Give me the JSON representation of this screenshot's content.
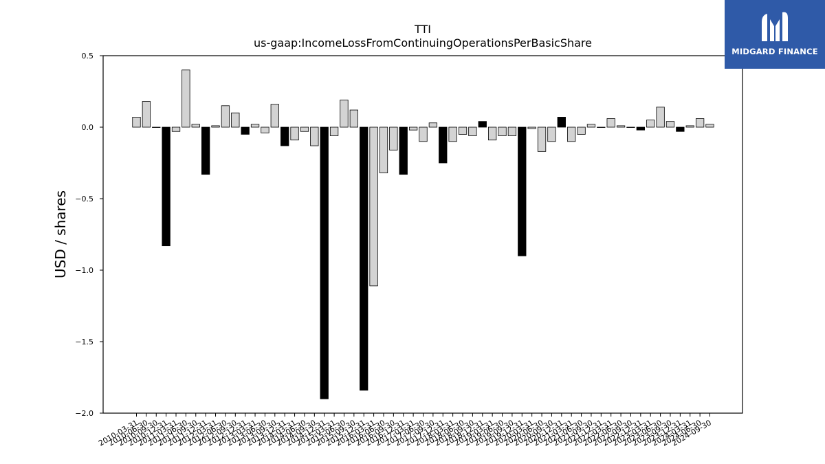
{
  "logo": {
    "text": "MIDGARD FINANCE",
    "icon": "midgard-logo-icon",
    "background": "#2f5aa8"
  },
  "chart_data": {
    "type": "bar",
    "title": "TTI",
    "subtitle": "us-gaap:IncomeLossFromContinuingOperationsPerBasicShare",
    "xlabel": "",
    "ylabel": "USD / shares",
    "ylim": [
      -2.0,
      0.5
    ],
    "yticks": [
      0.5,
      0.0,
      -0.5,
      -1.0,
      -1.5,
      -2.0
    ],
    "ytick_labels": [
      "0.5",
      "0.0",
      "−0.5",
      "−1.0",
      "−1.5",
      "−2.0"
    ],
    "grid": false,
    "colors": {
      "quarterly": "#d3d3d3",
      "annual": "#000000",
      "edge": "#000000"
    },
    "categories": [
      "2010-03-31",
      "2010-06-30",
      "2010-09-30",
      "2010-12-31",
      "2011-03-31",
      "2011-06-30",
      "2011-09-30",
      "2011-12-31",
      "2012-03-31",
      "2012-06-30",
      "2012-09-30",
      "2012-12-31",
      "2013-03-31",
      "2013-06-30",
      "2013-09-30",
      "2013-12-31",
      "2014-03-31",
      "2014-06-30",
      "2014-09-30",
      "2014-12-31",
      "2015-03-31",
      "2015-06-30",
      "2015-09-30",
      "2015-12-31",
      "2016-03-31",
      "2016-06-30",
      "2016-09-30",
      "2016-12-31",
      "2017-03-31",
      "2017-06-30",
      "2017-09-30",
      "2017-12-31",
      "2018-03-31",
      "2018-06-30",
      "2018-09-30",
      "2018-12-31",
      "2019-03-31",
      "2019-06-30",
      "2019-09-30",
      "2019-12-31",
      "2020-03-31",
      "2020-06-30",
      "2020-09-30",
      "2020-12-31",
      "2021-03-31",
      "2021-06-30",
      "2021-09-30",
      "2021-12-31",
      "2022-03-31",
      "2022-06-30",
      "2022-09-30",
      "2022-12-31",
      "2023-03-31",
      "2023-06-30",
      "2023-09-30",
      "2023-12-31",
      "2024-03-31",
      "2024-06-30",
      "2024-09-30"
    ],
    "values": [
      0.07,
      0.18,
      0.0,
      -0.83,
      -0.03,
      0.4,
      0.02,
      -0.33,
      0.01,
      0.15,
      0.1,
      -0.05,
      0.02,
      -0.04,
      0.16,
      -0.13,
      -0.09,
      -0.03,
      -0.13,
      -1.9,
      -0.06,
      0.19,
      0.12,
      -1.84,
      -1.11,
      -0.32,
      -0.16,
      -0.33,
      -0.02,
      -0.1,
      0.03,
      -0.25,
      -0.1,
      -0.05,
      -0.06,
      0.04,
      -0.09,
      -0.06,
      -0.06,
      -0.9,
      -0.01,
      -0.17,
      -0.1,
      0.07,
      -0.1,
      -0.05,
      0.02,
      0.0,
      0.06,
      0.01,
      0.0,
      -0.02,
      0.05,
      0.14,
      0.04,
      -0.03,
      0.01,
      0.06,
      0.02
    ]
  }
}
